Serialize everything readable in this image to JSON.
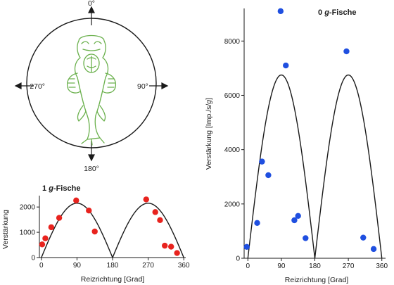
{
  "figure": {
    "diagram": {
      "angle_labels": [
        {
          "id": "top",
          "text": "0°"
        },
        {
          "id": "right",
          "text": "90°"
        },
        {
          "id": "bottom",
          "text": "180°"
        },
        {
          "id": "left",
          "text": "270°"
        }
      ],
      "colors": {
        "circle": "#1a1a1a",
        "fish": "#6ab04c"
      },
      "icon": "fish-dorsal-view-icon"
    }
  },
  "chart_data": [
    {
      "id": "chart-1g",
      "type": "scatter",
      "title": "1 g-Fische",
      "title_prefix": "1 ",
      "title_italic": "g",
      "title_suffix": "-Fische",
      "xlabel": "Reizrichtung [Grad]",
      "ylabel": "Verstärkung",
      "xlim": [
        -5,
        365
      ],
      "ylim": [
        0,
        2450
      ],
      "xticks": [
        0,
        90,
        180,
        270,
        360
      ],
      "yticks": [
        0,
        1000,
        2000
      ],
      "grid": false,
      "point_color": "#e8231e",
      "curve": {
        "type": "abs-sine",
        "amplitude": 2150,
        "period_deg": 180
      },
      "points": [
        {
          "x": 2,
          "y": 520
        },
        {
          "x": 10,
          "y": 760
        },
        {
          "x": 25,
          "y": 1200
        },
        {
          "x": 45,
          "y": 1570
        },
        {
          "x": 88,
          "y": 2260
        },
        {
          "x": 120,
          "y": 1860
        },
        {
          "x": 135,
          "y": 1030
        },
        {
          "x": 265,
          "y": 2300
        },
        {
          "x": 288,
          "y": 1800
        },
        {
          "x": 300,
          "y": 1480
        },
        {
          "x": 312,
          "y": 470
        },
        {
          "x": 328,
          "y": 430
        },
        {
          "x": 343,
          "y": 180
        }
      ]
    },
    {
      "id": "chart-0g",
      "type": "scatter",
      "title": "0 g-Fische",
      "title_prefix": "0 ",
      "title_italic": "g",
      "title_suffix": "-Fische",
      "xlabel": "Reizrichtung [Grad]",
      "ylabel": "Verstärkung [Imp./s/g]",
      "ylabel_prefix": "Verstärkung [Imp./s/",
      "ylabel_italic": "g",
      "ylabel_suffix": "]",
      "xlim": [
        -10,
        370
      ],
      "ylim": [
        0,
        9200
      ],
      "xticks": [
        0,
        90,
        180,
        270,
        360
      ],
      "yticks": [
        0,
        2000,
        4000,
        6000,
        8000
      ],
      "grid": false,
      "point_color": "#1f4fe0",
      "curve": {
        "type": "abs-sine",
        "amplitude": 6750,
        "period_deg": 180
      },
      "points": [
        {
          "x": -3,
          "y": 420
        },
        {
          "x": 25,
          "y": 1300
        },
        {
          "x": 38,
          "y": 3560
        },
        {
          "x": 55,
          "y": 3060
        },
        {
          "x": 88,
          "y": 9100
        },
        {
          "x": 102,
          "y": 7100
        },
        {
          "x": 125,
          "y": 1400
        },
        {
          "x": 135,
          "y": 1560
        },
        {
          "x": 155,
          "y": 740
        },
        {
          "x": 265,
          "y": 7620
        },
        {
          "x": 310,
          "y": 760
        },
        {
          "x": 338,
          "y": 340
        }
      ]
    }
  ]
}
